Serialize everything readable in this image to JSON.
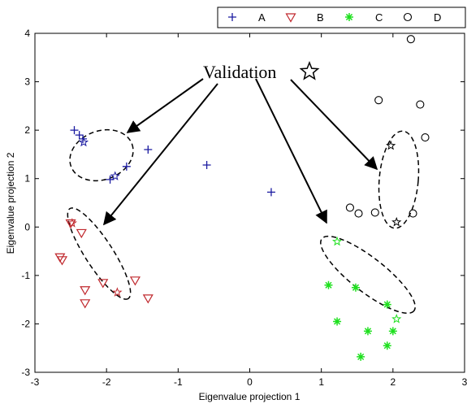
{
  "chart_data": {
    "type": "scatter",
    "title": "",
    "xlabel": "Eigenvalue projection 1",
    "ylabel": "Eigenvalue projection 2",
    "xlim": [
      -3,
      3
    ],
    "ylim": [
      -3,
      4
    ],
    "xticks": [
      "-3",
      "-2",
      "-1",
      "0",
      "1",
      "2",
      "3"
    ],
    "yticks": [
      "-3",
      "-2",
      "-1",
      "0",
      "1",
      "2",
      "3",
      "4"
    ],
    "grid": false,
    "legend_position": "top-right, outside plot",
    "annotation": "Validation",
    "series": [
      {
        "name": "A",
        "marker": "plus",
        "color": "#1a1aa0",
        "points": [
          [
            -2.45,
            2.0
          ],
          [
            -2.38,
            1.9
          ],
          [
            -2.33,
            1.82
          ],
          [
            -1.95,
            0.98
          ],
          [
            -1.72,
            1.25
          ],
          [
            -1.42,
            1.6
          ],
          [
            -0.6,
            1.28
          ],
          [
            0.3,
            0.72
          ]
        ],
        "validation": [
          [
            -2.32,
            1.75
          ],
          [
            -1.88,
            1.05
          ]
        ]
      },
      {
        "name": "B",
        "marker": "triangle-down",
        "color": "#c0282d",
        "points": [
          [
            -2.5,
            0.08
          ],
          [
            -2.35,
            -0.12
          ],
          [
            -2.62,
            -0.68
          ],
          [
            -2.65,
            -0.62
          ],
          [
            -2.3,
            -1.3
          ],
          [
            -2.3,
            -1.57
          ],
          [
            -2.05,
            -1.15
          ],
          [
            -1.6,
            -1.1
          ],
          [
            -1.42,
            -1.47
          ]
        ],
        "validation": [
          [
            -2.48,
            0.08
          ],
          [
            -1.85,
            -1.35
          ]
        ]
      },
      {
        "name": "C",
        "marker": "asterisk",
        "color": "#1fe01f",
        "points": [
          [
            1.1,
            -1.2
          ],
          [
            1.22,
            -1.95
          ],
          [
            1.48,
            -1.25
          ],
          [
            1.65,
            -2.15
          ],
          [
            1.55,
            -2.68
          ],
          [
            1.92,
            -1.6
          ],
          [
            1.92,
            -2.45
          ],
          [
            2.0,
            -2.15
          ]
        ],
        "validation": [
          [
            1.22,
            -0.3
          ],
          [
            2.05,
            -1.9
          ]
        ]
      },
      {
        "name": "D",
        "marker": "circle",
        "color": "#000000",
        "points": [
          [
            2.25,
            3.88
          ],
          [
            1.8,
            2.62
          ],
          [
            2.38,
            2.53
          ],
          [
            2.45,
            1.85
          ],
          [
            1.4,
            0.4
          ],
          [
            1.52,
            0.28
          ],
          [
            1.75,
            0.3
          ],
          [
            2.28,
            0.28
          ]
        ],
        "validation": [
          [
            1.97,
            1.68
          ],
          [
            2.05,
            0.1
          ]
        ]
      }
    ]
  }
}
